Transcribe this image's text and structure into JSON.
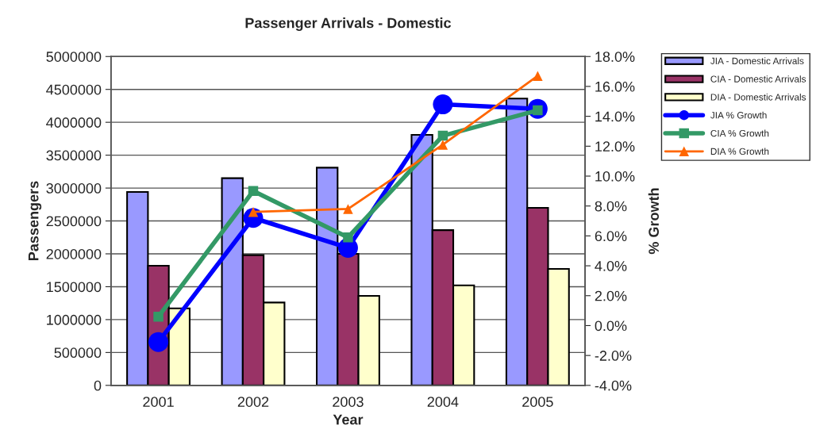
{
  "chart_data": {
    "type": "bar",
    "title": "Passenger Arrivals - Domestic",
    "xlabel": "Year",
    "ylabel": "Passengers",
    "y2label": "% Growth",
    "categories": [
      "2001",
      "2002",
      "2003",
      "2004",
      "2005"
    ],
    "series": [
      {
        "name": "JIA - Domestic Arrivals",
        "color": "#9999ff",
        "values": [
          2940000,
          3150000,
          3310000,
          3810000,
          4360000
        ]
      },
      {
        "name": "CIA - Domestic Arrivals",
        "color": "#993366",
        "values": [
          1820000,
          1980000,
          2000000,
          2360000,
          2700000
        ]
      },
      {
        "name": "DIA - Domestic Arrivals",
        "color": "#ffffcc",
        "values": [
          1170000,
          1260000,
          1360000,
          1520000,
          1770000
        ]
      },
      {
        "name": "JIA % Growth",
        "type": "line",
        "axis": "y2",
        "marker": "circle",
        "color": "#0000ff",
        "values": [
          -1.1,
          7.2,
          5.2,
          14.8,
          14.5
        ]
      },
      {
        "name": "CIA % Growth",
        "type": "line",
        "axis": "y2",
        "marker": "square",
        "color": "#339966",
        "values": [
          0.6,
          9.0,
          5.9,
          12.7,
          14.4
        ]
      },
      {
        "name": "DIA % Growth",
        "type": "line",
        "axis": "y2",
        "marker": "triangle",
        "color": "#ff6600",
        "values": [
          null,
          7.6,
          7.8,
          12.1,
          16.7
        ]
      }
    ],
    "ylim": [
      0,
      5000000
    ],
    "yticks": [
      0,
      500000,
      1000000,
      1500000,
      2000000,
      2500000,
      3000000,
      3500000,
      4000000,
      4500000,
      5000000
    ],
    "y2lim": [
      -4,
      18
    ],
    "y2ticks": [
      {
        "value": -4,
        "label": "-4.0%"
      },
      {
        "value": -2,
        "label": "-2.0%"
      },
      {
        "value": 0,
        "label": "0.0%"
      },
      {
        "value": 2,
        "label": "2.0%"
      },
      {
        "value": 4,
        "label": "4.0%"
      },
      {
        "value": 6,
        "label": "6.0%"
      },
      {
        "value": 8,
        "label": "8.0%"
      },
      {
        "value": 10,
        "label": "10.0%"
      },
      {
        "value": 12,
        "label": "12.0%"
      },
      {
        "value": 14,
        "label": "14.0%"
      },
      {
        "value": 16,
        "label": "16.0%"
      },
      {
        "value": 18,
        "label": "18.0%"
      }
    ],
    "grid": "y",
    "legend": "top right"
  }
}
